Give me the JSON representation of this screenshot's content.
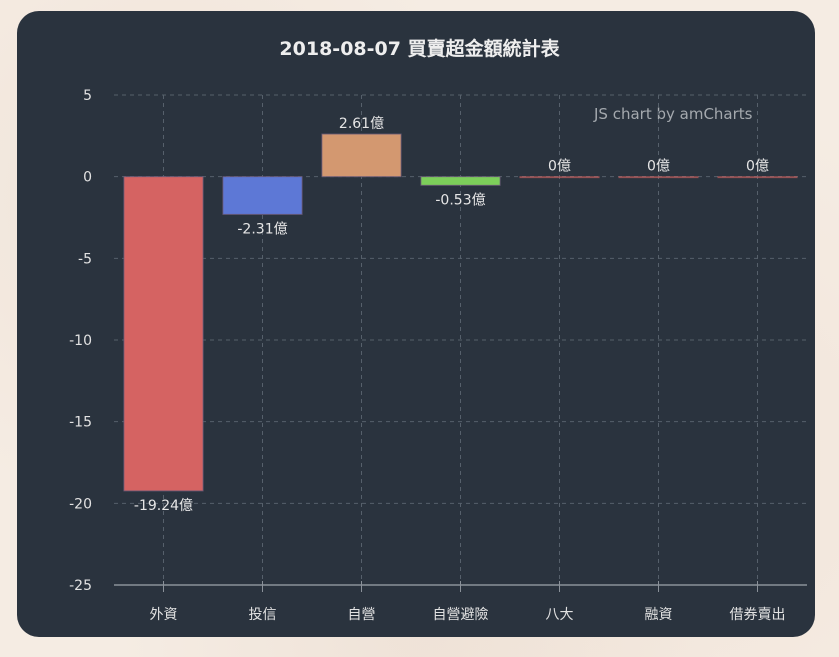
{
  "chart_data": {
    "type": "bar",
    "title": "2018-08-07 買賣超金額統計表",
    "credit": "JS chart by amCharts",
    "categories": [
      "外資",
      "投信",
      "自營",
      "自營避險",
      "八大",
      "融資",
      "借券賣出"
    ],
    "values": [
      -19.24,
      -2.31,
      2.61,
      -0.53,
      0,
      0,
      0
    ],
    "value_labels": [
      "-19.24億",
      "-2.31億",
      "2.61億",
      "-0.53億",
      "0億",
      "0億",
      "0億"
    ],
    "colors": [
      "#d56362",
      "#5d78d6",
      "#d39870",
      "#7ccf5a",
      "#d56362",
      "#d56362",
      "#d56362"
    ],
    "unit": "億",
    "xlabel": "",
    "ylabel": "",
    "ylim": [
      -25,
      5
    ],
    "yticks": [
      5,
      0,
      -5,
      -10,
      -15,
      -20,
      -25
    ],
    "grid": true,
    "legend": null
  },
  "theme": {
    "card_bg": "#2a333e",
    "grid_color": "#56606b",
    "axis_color": "#8a9199",
    "text_color": "#e2e2e2"
  }
}
